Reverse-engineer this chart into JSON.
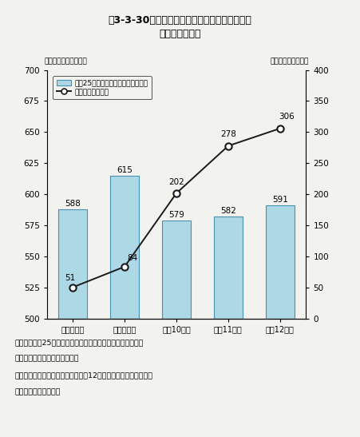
{
  "title_line1": "第3-3-30図　国立大学等における施設の老朽化",
  "title_line2": "・狭隘化の対応",
  "categories": [
    "平成８年度",
    "平成９年度",
    "平成10年度",
    "平成11年度",
    "平成12年度"
  ],
  "bar_values": [
    588,
    615,
    579,
    582,
    591
  ],
  "line_values": [
    51,
    84,
    202,
    278,
    306
  ],
  "bar_color": "#add8e6",
  "bar_edge_color": "#4a90b0",
  "line_color": "#1a1a1a",
  "marker_facecolor": "#ffffff",
  "marker_edgecolor": "#1a1a1a",
  "ylim_left": [
    500,
    700
  ],
  "ylim_right": [
    0,
    400
  ],
  "yticks_left": [
    500,
    525,
    550,
    575,
    600,
    625,
    650,
    675,
    700
  ],
  "yticks_right": [
    0,
    50,
    100,
    150,
    200,
    250,
    300,
    350,
    400
  ],
  "ylabel_left": "（要改修面積：万㎡）",
  "ylabel_right": "（改善実績：万㎡）",
  "legend_bar": "築後25年以上の改修等が必要な面積",
  "legend_line": "改善実績（累計）",
  "note1": "注）１．築後25年以上の改修等が必要な面積は，各年度とも",
  "note2": "　　　　５月１日現在のデータ",
  "note3": "　　２．改善実績（累計）は、平成12年度補正予算を含まない。",
  "note4": "資料：文部科学省調べ",
  "bg_color": "#f2f2ee"
}
